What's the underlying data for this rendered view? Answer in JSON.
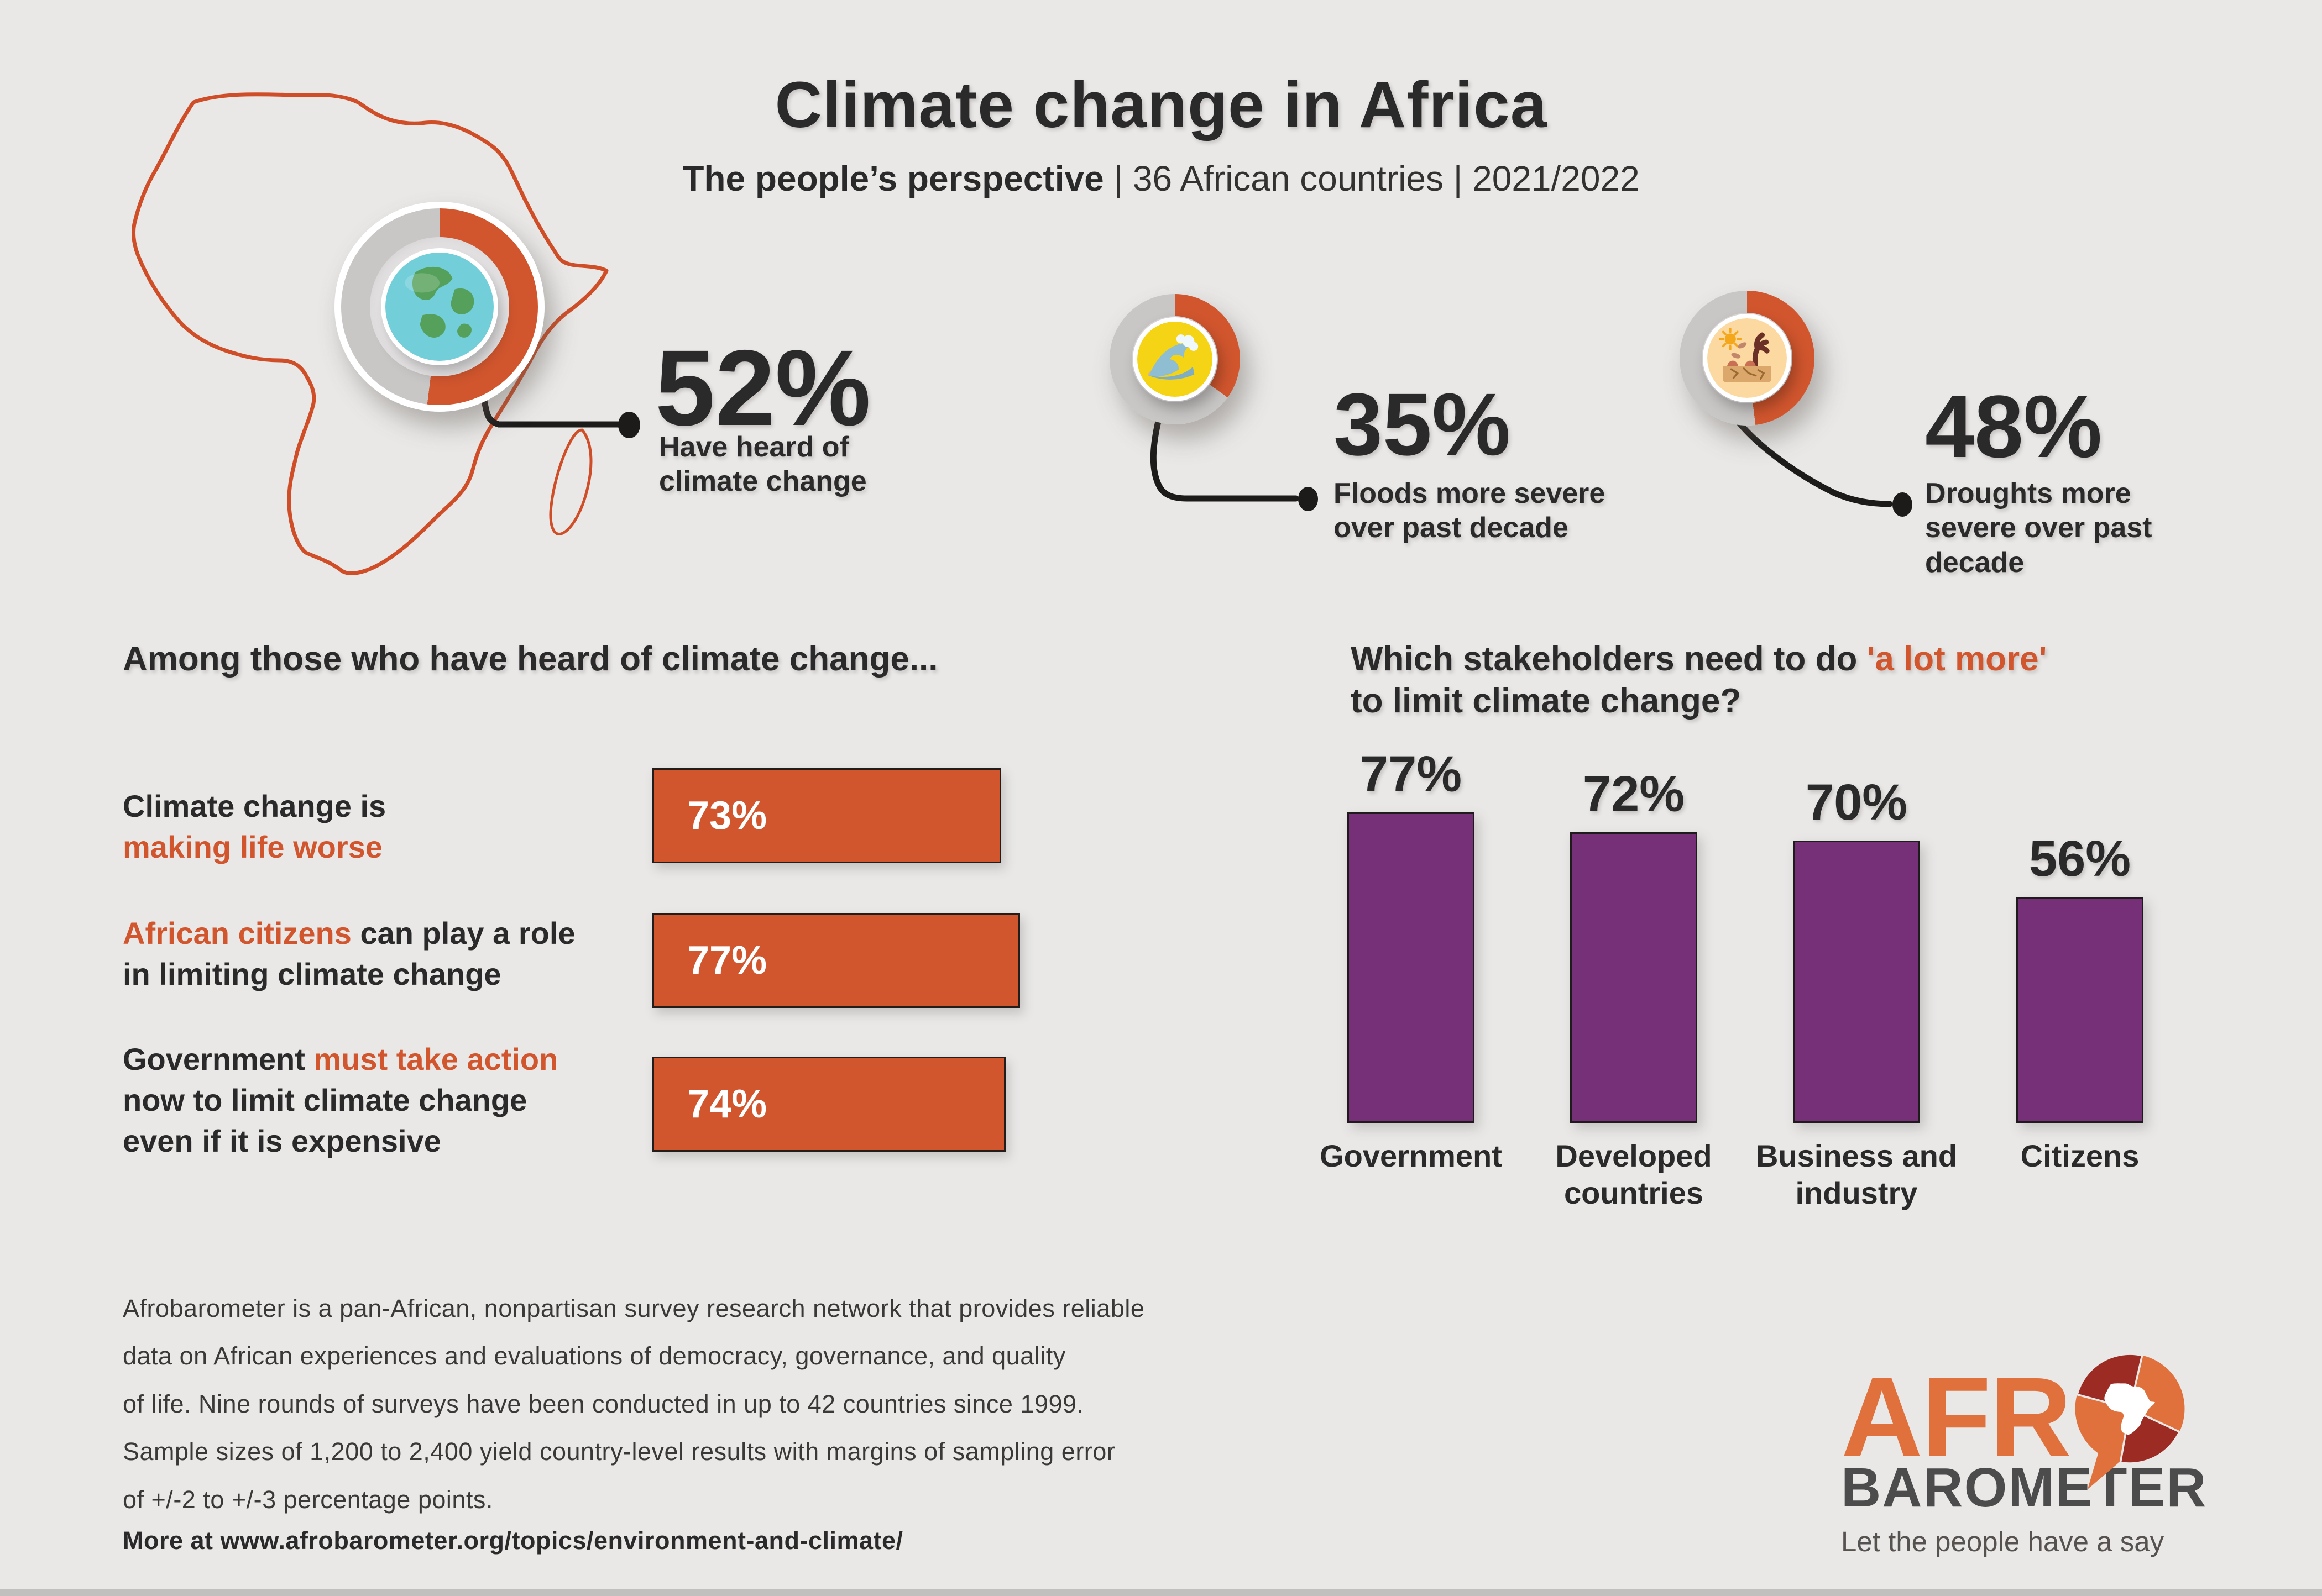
{
  "colors": {
    "background": "#E9E8E7",
    "accent_orange": "#D1562E",
    "map_outline": "#CF4E28",
    "track_gray": "#C9C7C6",
    "bar_purple": "#753078",
    "text_dark": "#2B2A2A",
    "connector_black": "#1C1B1A",
    "logo_orange": "#E0713C",
    "logo_dark_red": "#9C2B24",
    "logo_gray": "#4D4C4C"
  },
  "header": {
    "title": "Climate change in Africa",
    "subtitle_bold": "The people’s perspective",
    "subtitle_rest": " | 36 African countries | 2021/2022"
  },
  "stats": [
    {
      "id": "heard",
      "value": 52,
      "value_label": "52%",
      "label_lines": [
        "Have heard of",
        "climate change"
      ],
      "icon": "globe-icon"
    },
    {
      "id": "floods",
      "value": 35,
      "value_label": "35%",
      "label_lines": [
        "Floods more severe",
        "over past decade"
      ],
      "icon": "wave-icon"
    },
    {
      "id": "droughts",
      "value": 48,
      "value_label": "48%",
      "label_lines": [
        "Droughts more",
        "severe over past",
        "decade"
      ],
      "icon": "drought-icon"
    }
  ],
  "left_chart": {
    "heading": "Among those who have heard of climate change...",
    "rows": [
      {
        "label_segments": [
          {
            "t": "Climate change is\n",
            "c": "dark"
          },
          {
            "t": "making life worse",
            "c": "accent"
          }
        ],
        "value": 73,
        "value_label": "73%"
      },
      {
        "label_segments": [
          {
            "t": "African citizens",
            "c": "accent"
          },
          {
            "t": " can play a role\nin limiting climate change",
            "c": "dark"
          }
        ],
        "value": 77,
        "value_label": "77%"
      },
      {
        "label_segments": [
          {
            "t": "Government ",
            "c": "dark"
          },
          {
            "t": "must take action",
            "c": "accent"
          },
          {
            "t": "\nnow to limit climate change\neven if it is expensive",
            "c": "dark"
          }
        ],
        "value": 74,
        "value_label": "74%"
      }
    ]
  },
  "right_chart": {
    "heading_segments": [
      {
        "t": "Which stakeholders need to do ",
        "c": "dark"
      },
      {
        "t": "'a lot more'",
        "c": "accent"
      },
      {
        "t": "\nto limit climate change?",
        "c": "dark"
      }
    ],
    "bars": [
      {
        "label_lines": [
          "Government"
        ],
        "value": 77,
        "value_label": "77%"
      },
      {
        "label_lines": [
          "Developed",
          "countries"
        ],
        "value": 72,
        "value_label": "72%"
      },
      {
        "label_lines": [
          "Business and",
          "industry"
        ],
        "value": 70,
        "value_label": "70%"
      },
      {
        "label_lines": [
          "Citizens"
        ],
        "value": 56,
        "value_label": "56%"
      }
    ]
  },
  "footer": {
    "lines": [
      "Afrobarometer is a pan-African, nonpartisan survey research network that provides reliable",
      "data on African experiences and evaluations of democracy, governance, and quality",
      "of life. Nine rounds of surveys have been conducted in up to 42 countries since 1999.",
      "Sample sizes of 1,200 to 2,400 yield country-level results with margins of sampling error",
      "of +/-2 to +/-3 percentage points."
    ],
    "more": "More at www.afrobarometer.org/topics/environment-and-climate/"
  },
  "logo": {
    "line1": "AFR",
    "line2": "BAROMETER",
    "tagline": "Let the people have a say"
  },
  "chart_data": [
    {
      "type": "pie",
      "title": "Have heard of climate change",
      "categories": [
        "Have heard",
        "Other"
      ],
      "values": [
        52,
        48
      ],
      "unit": "%",
      "colors": [
        "#D1562E",
        "#C9C7C6"
      ]
    },
    {
      "type": "pie",
      "title": "Floods more severe over past decade",
      "categories": [
        "More severe",
        "Other"
      ],
      "values": [
        35,
        65
      ],
      "unit": "%",
      "colors": [
        "#D1562E",
        "#C9C7C6"
      ]
    },
    {
      "type": "pie",
      "title": "Droughts more severe over past decade",
      "categories": [
        "More severe",
        "Other"
      ],
      "values": [
        48,
        52
      ],
      "unit": "%",
      "colors": [
        "#D1562E",
        "#C9C7C6"
      ]
    },
    {
      "type": "bar",
      "orientation": "horizontal",
      "title": "Among those who have heard of climate change...",
      "categories": [
        "Climate change is making life worse",
        "African citizens can play a role in limiting climate change",
        "Government must take action now to limit climate change even if it is expensive"
      ],
      "values": [
        73,
        77,
        74
      ],
      "unit": "%",
      "xlim": [
        0,
        100
      ],
      "bar_color": "#D1562E",
      "grid": false,
      "data_labels": [
        "73%",
        "77%",
        "74%"
      ]
    },
    {
      "type": "bar",
      "orientation": "vertical",
      "title": "Which stakeholders need to do 'a lot more' to limit climate change?",
      "categories": [
        "Government",
        "Developed countries",
        "Business and industry",
        "Citizens"
      ],
      "values": [
        77,
        72,
        70,
        56
      ],
      "unit": "%",
      "ylim": [
        0,
        100
      ],
      "bar_color": "#753078",
      "grid": false,
      "data_labels": [
        "77%",
        "72%",
        "70%",
        "56%"
      ]
    }
  ]
}
